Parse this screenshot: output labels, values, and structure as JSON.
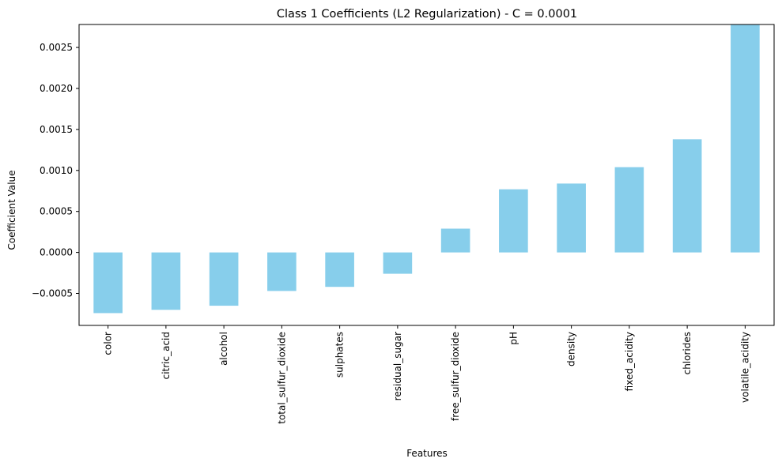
{
  "chart_data": {
    "type": "bar",
    "title": "Class 1 Coefficients (L2 Regularization) - C = 0.0001",
    "xlabel": "Features",
    "ylabel": "Coefficient Value",
    "categories": [
      "color",
      "citric_acid",
      "alcohol",
      "total_sulfur_dioxide",
      "sulphates",
      "residual_sugar",
      "free_sulfur_dioxide",
      "pH",
      "density",
      "fixed_acidity",
      "chlorides",
      "volatile_acidity"
    ],
    "values": [
      -0.00074,
      -0.0007,
      -0.00065,
      -0.00047,
      -0.00042,
      -0.00026,
      0.00029,
      0.00077,
      0.00084,
      0.00104,
      0.00138,
      0.00278
    ],
    "yticks": [
      -0.0005,
      0.0,
      0.0005,
      0.001,
      0.0015,
      0.002,
      0.0025
    ],
    "ytick_labels": [
      "−0.0005",
      "0.0000",
      "0.0005",
      "0.0010",
      "0.0015",
      "0.0020",
      "0.0025"
    ],
    "ylim": [
      -0.00089,
      0.00278
    ],
    "grid": false,
    "legend": "none",
    "bar_color": "#87CEEB"
  }
}
